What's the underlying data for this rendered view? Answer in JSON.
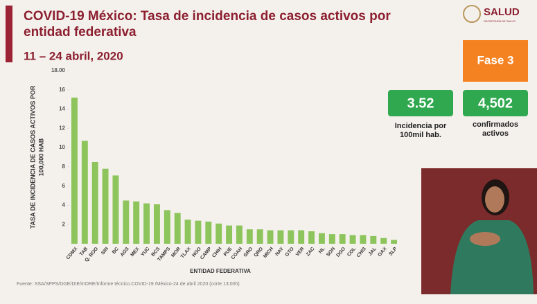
{
  "header": {
    "title": [
      "COVID-19 México: Tasa de incidencia de casos activos por",
      "entidad federativa"
    ],
    "date": "11 – 24 abril, 2020",
    "logo": "SALUD",
    "logo_sub": "SECRETARÍA DE SALUD"
  },
  "phase": "Fase 3",
  "stats": [
    {
      "value": "3.52",
      "label": [
        "Incidencia por",
        "100mil hab."
      ]
    },
    {
      "value": "4,502",
      "label": [
        "confirmados",
        "activos"
      ]
    }
  ],
  "source": "Fuente: SSA/SPPS/DGE/DIE/InDRE/Informe técnico.COVID-19 /México-24 de abril 2020 (corte 13:00h)",
  "chart_data": {
    "type": "bar",
    "color": "#8dc55c",
    "ylabel": [
      "TASA DE INCIDENCIA DE CASOS ACTIVOS POR",
      "100,000 HAB"
    ],
    "xlabel": "ENTIDAD FEDERATIVA",
    "categories": [
      "CDMX",
      "TAB",
      "Q. ROO",
      "SIN",
      "BC",
      "AGS",
      "MEX",
      "YUC",
      "BCS",
      "TAMPS",
      "MOR",
      "TLAX",
      "HGO",
      "CAMP",
      "CHIH",
      "PUE",
      "COAH",
      "GRO",
      "QRO",
      "MICH",
      "NAY",
      "GTO",
      "VER",
      "ZAC",
      "NL",
      "SON",
      "DGO",
      "COL",
      "CHIS",
      "JAL",
      "OAX",
      "SLP"
    ],
    "values": [
      15.2,
      10.7,
      8.5,
      7.8,
      7.1,
      4.5,
      4.4,
      4.2,
      4.1,
      3.5,
      3.2,
      2.5,
      2.4,
      2.3,
      2.1,
      1.9,
      1.9,
      1.5,
      1.5,
      1.4,
      1.4,
      1.4,
      1.4,
      1.3,
      1.1,
      1.0,
      1.0,
      0.9,
      0.9,
      0.8,
      0.6,
      0.4
    ],
    "ylim": [
      0,
      18
    ],
    "yticks": [
      2,
      4,
      6,
      8,
      10,
      12,
      14,
      16,
      {
        "value": 18,
        "label": "18.00"
      }
    ],
    "grid": false
  }
}
